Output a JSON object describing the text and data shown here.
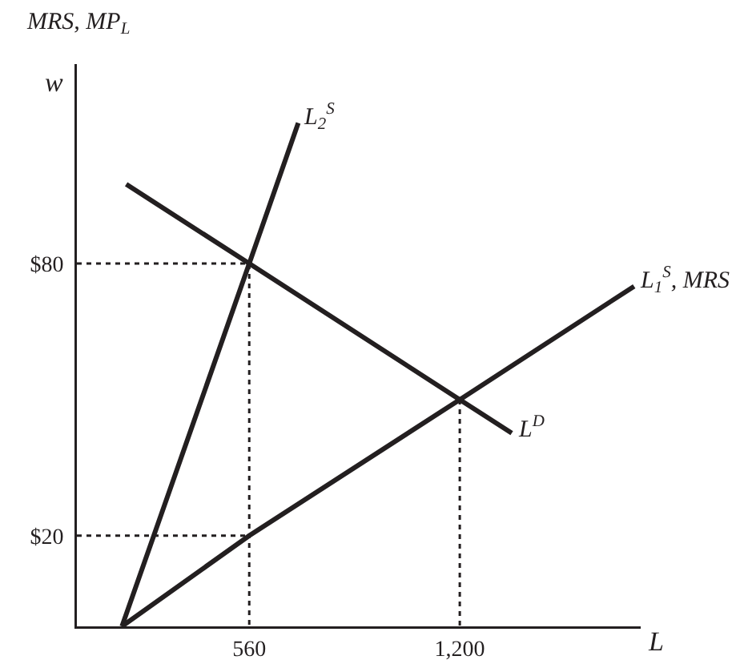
{
  "chart_data": {
    "type": "line",
    "xlabel": "L",
    "ylabel": "MRS, MP$_{L}$",
    "annotations": [
      "w"
    ],
    "xlim": [
      36,
      1750
    ],
    "ylim": [
      0,
      124
    ],
    "xticks": [
      {
        "value": 560,
        "label": "560"
      },
      {
        "value": 1200,
        "label": "1,200"
      }
    ],
    "yticks": [
      {
        "value": 20,
        "label": "$20"
      },
      {
        "value": 80,
        "label": "$80"
      }
    ],
    "grid": false,
    "legend": false,
    "marker": "none",
    "line_style": "solid",
    "series": [
      {
        "name": "L$_{2}$$^{S}$",
        "color": "#231f20",
        "x": [
          173,
          560,
          709
        ],
        "values": [
          0,
          80,
          111
        ]
      },
      {
        "name": "L$_{1}$$^{S}$, MRS",
        "color": "#231f20",
        "x": [
          173,
          560,
          1200,
          1730
        ],
        "values": [
          0,
          20,
          50,
          75
        ]
      },
      {
        "name": "L$^{D}$",
        "color": "#231f20",
        "x": [
          186,
          560,
          1200,
          1358
        ],
        "values": [
          97.5,
          80,
          50,
          42.6
        ]
      },
      {
        "color": "#231f20",
        "line_style": "dotted",
        "x": [
          36,
          560,
          560
        ],
        "values": [
          80,
          80,
          0
        ]
      },
      {
        "color": "#231f20",
        "line_style": "dotted",
        "x": [
          36,
          560
        ],
        "values": [
          20,
          20
        ]
      },
      {
        "color": "#231f20",
        "line_style": "dotted",
        "x": [
          1200,
          1200
        ],
        "values": [
          50,
          0
        ]
      }
    ]
  }
}
